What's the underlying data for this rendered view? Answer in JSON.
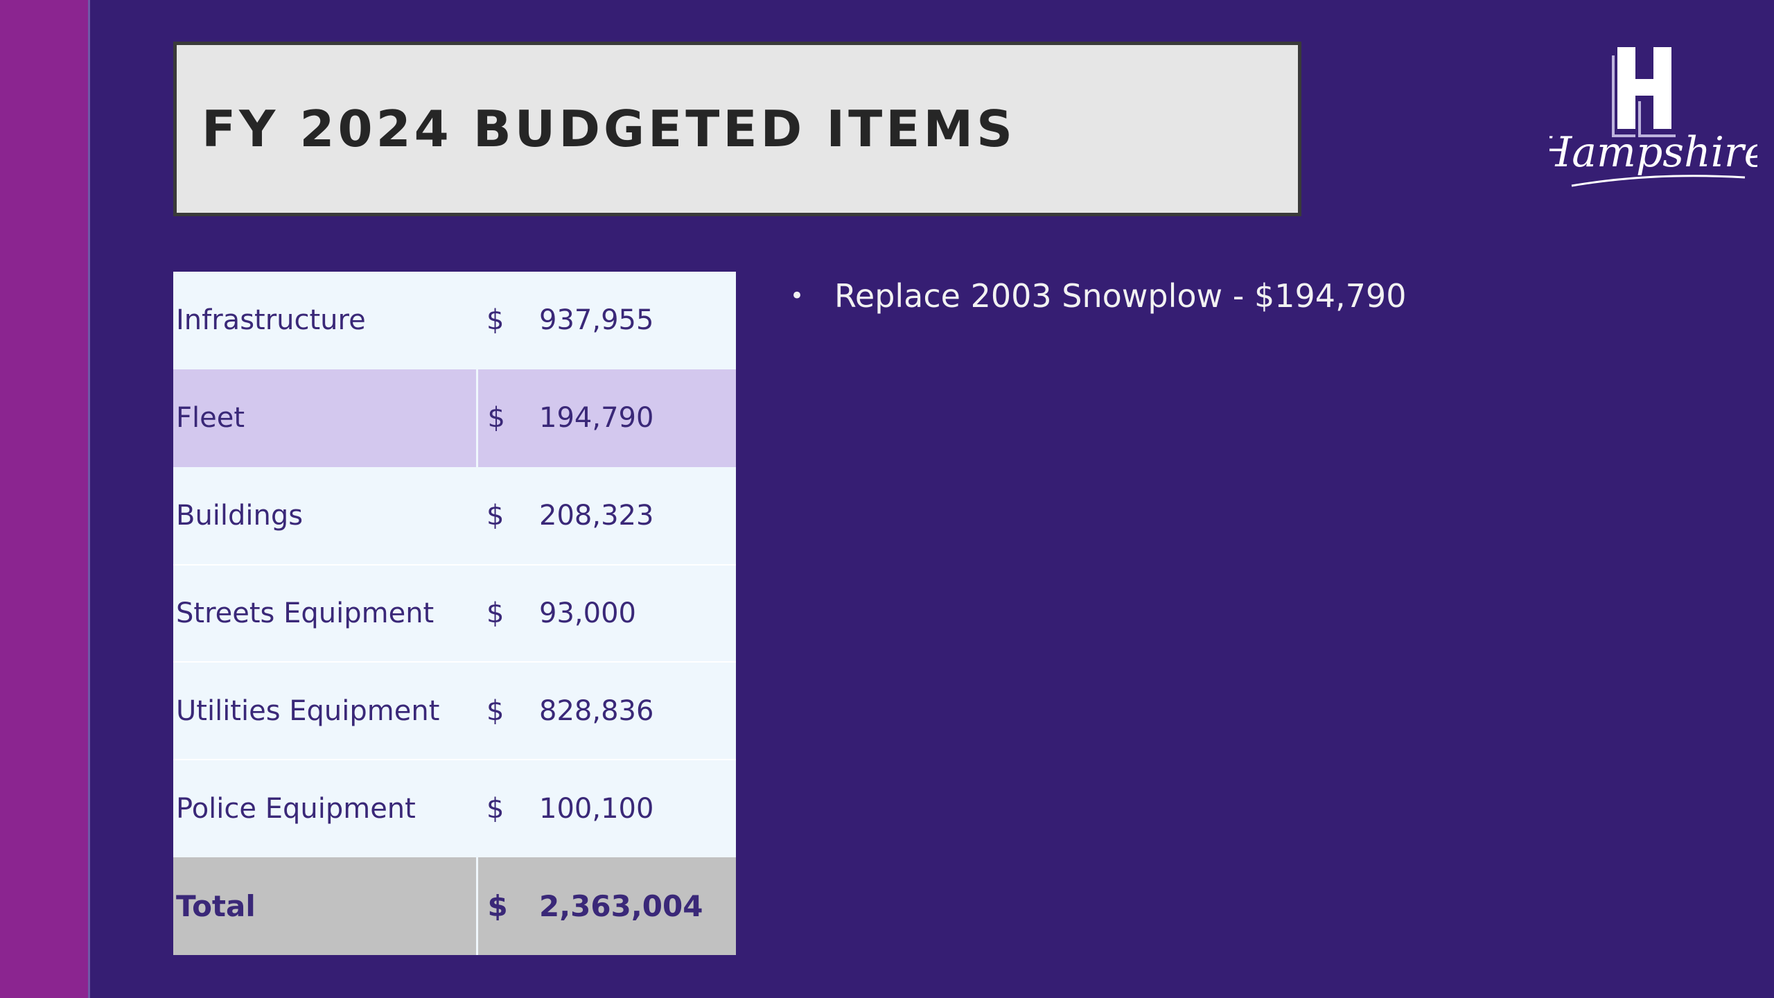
{
  "title": "FY 2024 BUDGETED ITEMS",
  "logo": {
    "text": "Hampshire",
    "letter": "H"
  },
  "table": {
    "rows": [
      {
        "label": "Infrastructure",
        "currency": "$",
        "amount": "937,955",
        "style": "plain"
      },
      {
        "label": "Fleet",
        "currency": "$",
        "amount": "194,790",
        "style": "highlight"
      },
      {
        "label": "Buildings",
        "currency": "$",
        "amount": "208,323",
        "style": "plain"
      },
      {
        "label": "Streets Equipment",
        "currency": "$",
        "amount": "93,000",
        "style": "plain"
      },
      {
        "label": "Utilities Equipment",
        "currency": "$",
        "amount": "828,836",
        "style": "plain"
      },
      {
        "label": "Police Equipment",
        "currency": "$",
        "amount": "100,100",
        "style": "plain"
      }
    ],
    "total": {
      "label": "Total",
      "currency": "$",
      "amount": "2,363,004"
    }
  },
  "bullets": [
    "Replace 2003 Snowplow - $194,790"
  ],
  "colors": {
    "background": "#361e73",
    "accent_bar": "#8b2590",
    "title_box": "#e6e6e6",
    "table_row": "#eff7fd",
    "table_highlight": "#d3c8ee",
    "table_total": "#c1c1c1",
    "table_text": "#3a2878"
  }
}
